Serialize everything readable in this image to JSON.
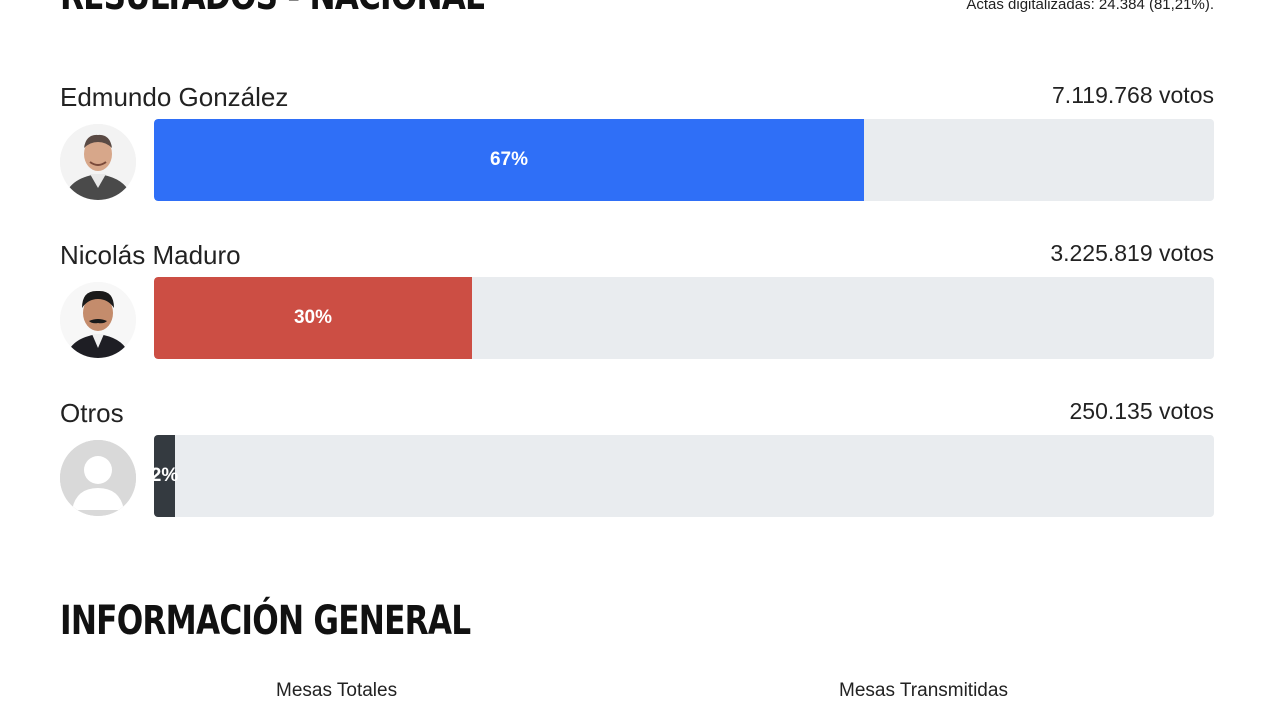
{
  "header": {
    "title": "RESULTADOS - NACIONAL",
    "actas": "Actas digitalizadas: 24.384 (81,21%)."
  },
  "chart_data": {
    "type": "bar",
    "categories": [
      "Edmundo González",
      "Nicolás Maduro",
      "Otros"
    ],
    "values": [
      7119768,
      3225819,
      250135
    ],
    "percent_labels": [
      "67%",
      "30%",
      "2%"
    ],
    "percent_values": [
      67,
      30,
      2
    ],
    "vote_labels": [
      "7.119.768 votos",
      "3.225.819 votos",
      "250.135 votos"
    ],
    "colors": [
      "#2f6ff7",
      "#cc4e44",
      "#343a40"
    ],
    "title": "RESULTADOS - NACIONAL",
    "xlabel": "",
    "ylabel": "",
    "ylim": [
      0,
      100
    ]
  },
  "info": {
    "title": "INFORMACIÓN GENERAL",
    "col1": "Mesas Totales",
    "col2": "Mesas Transmitidas"
  },
  "avatars": [
    "edmundo-photo",
    "maduro-photo",
    "generic-user-icon"
  ]
}
